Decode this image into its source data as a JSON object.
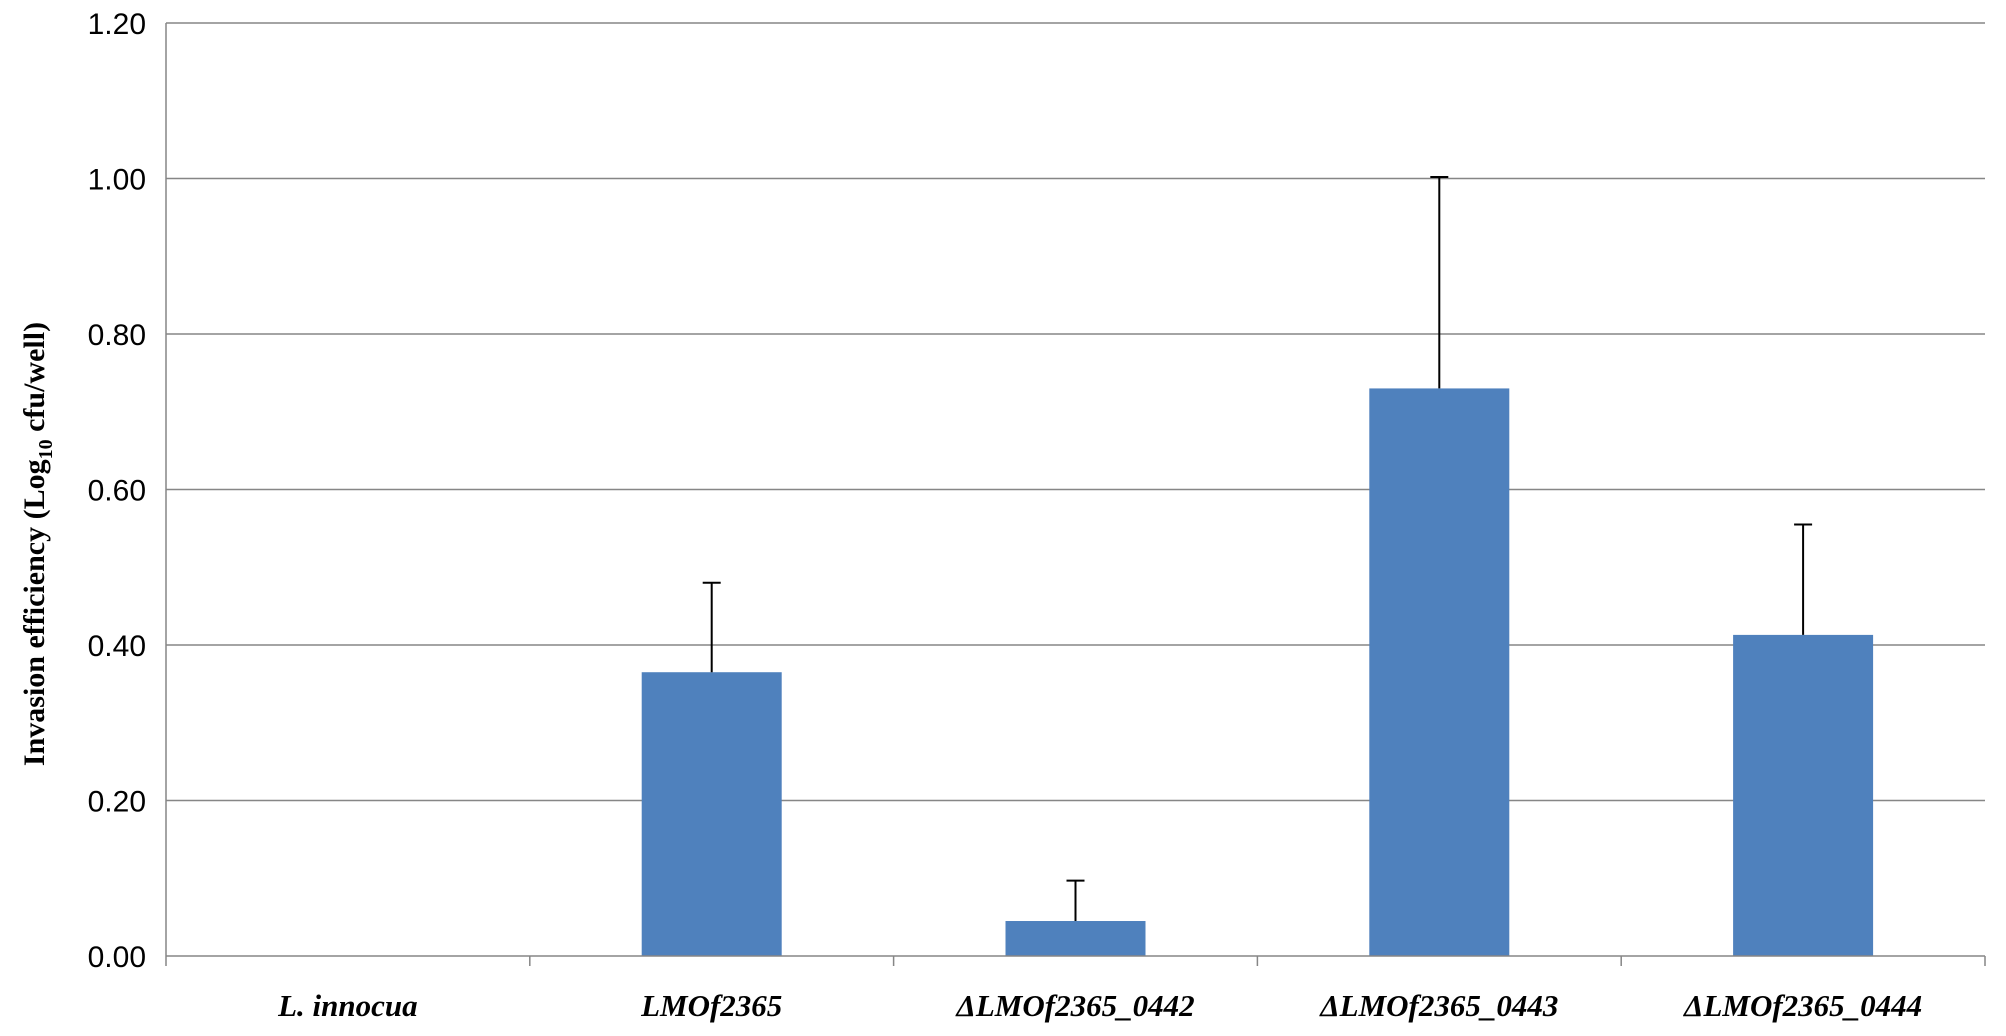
{
  "chart_data": {
    "type": "bar",
    "title": "",
    "xlabel": "",
    "ylabel": {
      "prefix": "Invasion  efficiency (Log",
      "subscript": "10",
      "suffix": " cfu/well)"
    },
    "categories": [
      "L. innocua",
      "LMOf2365",
      "ΔLMOf2365_0442",
      "ΔLMOf2365_0443",
      "ΔLMOf2365_0444"
    ],
    "values": [
      0.0,
      0.365,
      0.045,
      0.73,
      0.413
    ],
    "error_upper": [
      0.0,
      0.115,
      0.052,
      0.272,
      0.142
    ],
    "ylim": [
      0,
      1.2
    ],
    "yticks": [
      "0.00",
      "0.20",
      "0.40",
      "0.60",
      "0.80",
      "1.00",
      "1.20"
    ],
    "grid": true,
    "legend": "none",
    "bar_color": "#4f81bd",
    "grid_color": "#868686"
  }
}
